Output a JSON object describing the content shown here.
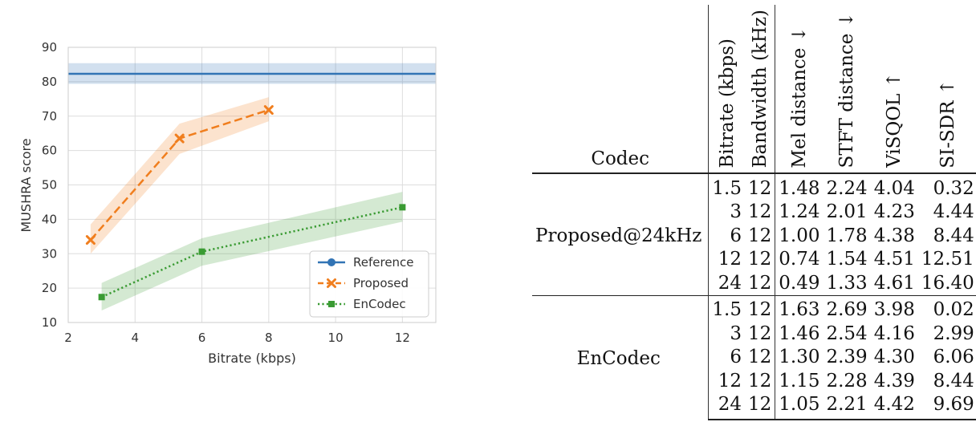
{
  "chart_data": {
    "type": "line",
    "xlabel": "Bitrate (kbps)",
    "ylabel": "MUSHRA score",
    "xlim": [
      2,
      13
    ],
    "ylim": [
      10,
      90
    ],
    "xticks": [
      2,
      4,
      6,
      8,
      10,
      12
    ],
    "yticks": [
      10,
      20,
      30,
      40,
      50,
      60,
      70,
      80,
      90
    ],
    "grid": true,
    "legend_position": "bottom-right",
    "series": [
      {
        "name": "Reference",
        "color": "#3274b5",
        "style": "solid",
        "marker": "circle",
        "x": [
          2,
          13
        ],
        "y": [
          82.3,
          82.3
        ],
        "ci_low": [
          79.4,
          79.4
        ],
        "ci_high": [
          85.4,
          85.4
        ]
      },
      {
        "name": "Proposed",
        "color": "#f07e1e",
        "style": "dashed",
        "marker": "x",
        "x": [
          2.67,
          5.33,
          8
        ],
        "y": [
          34,
          63.5,
          71.8
        ],
        "ci_low": [
          30,
          59,
          68.5
        ],
        "ci_high": [
          38.5,
          67.8,
          75.5
        ]
      },
      {
        "name": "EnCodec",
        "color": "#3a9b33",
        "style": "dotted",
        "marker": "square",
        "x": [
          3,
          6,
          12
        ],
        "y": [
          17.4,
          30.6,
          43.5
        ],
        "ci_low": [
          13.5,
          26.5,
          39.3
        ],
        "ci_high": [
          21.5,
          34.5,
          48
        ]
      }
    ]
  },
  "table": {
    "headers": {
      "codec": "Codec",
      "bitrate": "Bitrate (kbps)",
      "bandwidth": "Bandwidth (kHz)",
      "mel": "Mel distance ↓",
      "stft": "STFT distance ↓",
      "visqol": "ViSQOL ↑",
      "sisdr": "SI-SDR ↑"
    },
    "groups": [
      {
        "codec": "Proposed@24kHz",
        "rows": [
          [
            "1.5",
            "12",
            "1.48",
            "2.24",
            "4.04",
            "0.32"
          ],
          [
            "3",
            "12",
            "1.24",
            "2.01",
            "4.23",
            "4.44"
          ],
          [
            "6",
            "12",
            "1.00",
            "1.78",
            "4.38",
            "8.44"
          ],
          [
            "12",
            "12",
            "0.74",
            "1.54",
            "4.51",
            "12.51"
          ],
          [
            "24",
            "12",
            "0.49",
            "1.33",
            "4.61",
            "16.40"
          ]
        ]
      },
      {
        "codec": "EnCodec",
        "rows": [
          [
            "1.5",
            "12",
            "1.63",
            "2.69",
            "3.98",
            "0.02"
          ],
          [
            "3",
            "12",
            "1.46",
            "2.54",
            "4.16",
            "2.99"
          ],
          [
            "6",
            "12",
            "1.30",
            "2.39",
            "4.30",
            "6.06"
          ],
          [
            "12",
            "12",
            "1.15",
            "2.28",
            "4.39",
            "8.44"
          ],
          [
            "24",
            "12",
            "1.05",
            "2.21",
            "4.42",
            "9.69"
          ]
        ]
      }
    ]
  }
}
